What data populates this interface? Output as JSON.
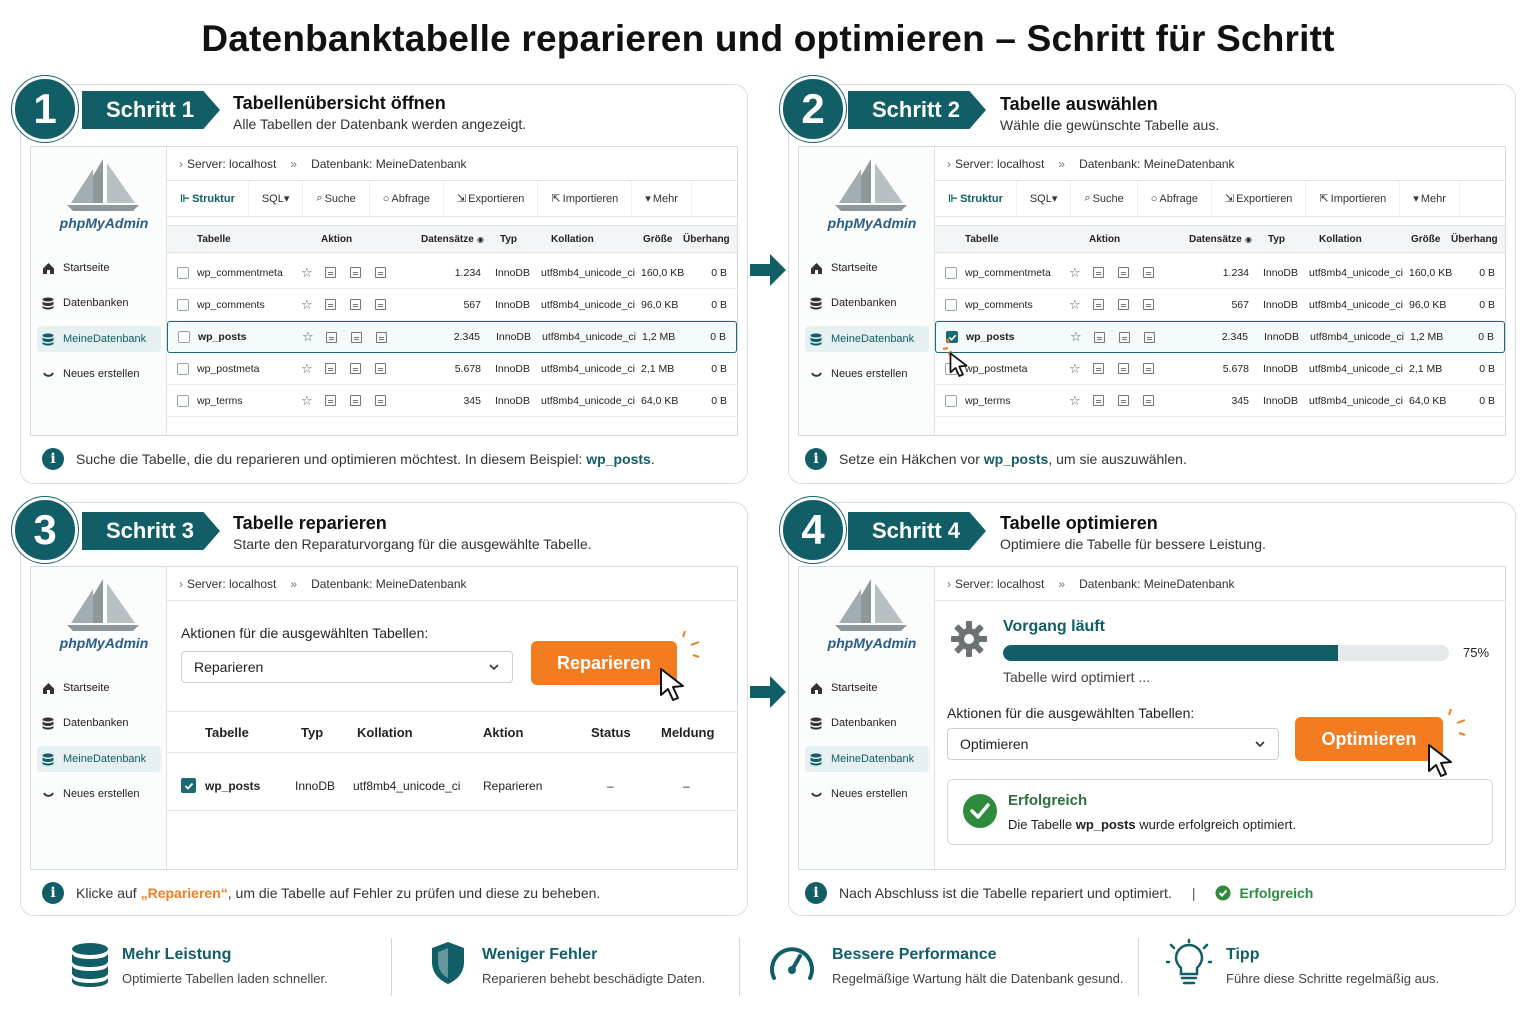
{
  "title": "Datenbanktabelle reparieren und optimieren – Schritt für Schritt",
  "pma": {
    "logo": "phpMyAdmin",
    "sidebar": [
      "Startseite",
      "Datenbanken",
      "MeineDatenbank",
      "Neues erstellen"
    ],
    "crumb_server": "Server: localhost",
    "crumb_sep": "»",
    "crumb_db": "Datenbank: MeineDatenbank",
    "tabs": [
      "Struktur",
      "SQL▾",
      "Suche",
      "Abfrage",
      "Exportieren",
      "Importieren",
      "Mehr"
    ],
    "columns": [
      "Tabelle",
      "Aktion",
      "Datensätze",
      "Typ",
      "Kollation",
      "Größe",
      "Überhang"
    ],
    "rows": [
      {
        "name": "wp_commentmeta",
        "records": "1.234",
        "type": "InnoDB",
        "collation": "utf8mb4_unicode_ci",
        "size": "160,0 KB",
        "overhead": "0 B"
      },
      {
        "name": "wp_comments",
        "records": "567",
        "type": "InnoDB",
        "collation": "utf8mb4_unicode_ci",
        "size": "96,0 KB",
        "overhead": "0 B"
      },
      {
        "name": "wp_posts",
        "records": "2.345",
        "type": "InnoDB",
        "collation": "utf8mb4_unicode_ci",
        "size": "1,2 MB",
        "overhead": "0 B"
      },
      {
        "name": "wp_postmeta",
        "records": "5.678",
        "type": "InnoDB",
        "collation": "utf8mb4_unicode_ci",
        "size": "2,1 MB",
        "overhead": "0 B"
      },
      {
        "name": "wp_terms",
        "records": "345",
        "type": "InnoDB",
        "collation": "utf8mb4_unicode_ci",
        "size": "64,0 KB",
        "overhead": "0 B"
      }
    ]
  },
  "step1": {
    "num": "1",
    "tag": "Schritt 1",
    "title": "Tabellenübersicht öffnen",
    "sub": "Alle Tabellen der Datenbank werden angezeigt.",
    "info_pre": "Suche die Tabelle, die du reparieren und optimieren möchtest. In diesem Beispiel: ",
    "info_bold": "wp_posts",
    "info_post": "."
  },
  "step2": {
    "num": "2",
    "tag": "Schritt 2",
    "title": "Tabelle auswählen",
    "sub": "Wähle die gewünschte Tabelle aus.",
    "info_pre": "Setze ein Häkchen vor ",
    "info_bold": "wp_posts",
    "info_post": ", um sie auszuwählen."
  },
  "step3": {
    "num": "3",
    "tag": "Schritt 3",
    "title": "Tabelle reparieren",
    "sub": "Starte den Reparaturvorgang für die ausgewählte Tabelle.",
    "actions_label": "Aktionen für die ausgewählten Tabellen:",
    "select_value": "Reparieren",
    "button": "Reparieren",
    "columns": [
      "Tabelle",
      "Typ",
      "Kollation",
      "Aktion",
      "Status",
      "Meldung"
    ],
    "row": {
      "name": "wp_posts",
      "type": "InnoDB",
      "collation": "utf8mb4_unicode_ci",
      "action": "Reparieren",
      "status": "–",
      "message": "–"
    },
    "info_pre": "Klicke auf ",
    "info_bold": "„Reparieren“",
    "info_post": ", um die Tabelle auf Fehler zu prüfen und diese zu beheben."
  },
  "step4": {
    "num": "4",
    "tag": "Schritt 4",
    "title": "Tabelle optimieren",
    "sub": "Optimiere die Tabelle für bessere Leistung.",
    "progress_title": "Vorgang läuft",
    "progress_value": 0.75,
    "progress_label": "75%",
    "progress_note": "Tabelle wird optimiert ...",
    "actions_label": "Aktionen für die ausgewählten Tabellen:",
    "select_value": "Optimieren",
    "button": "Optimieren",
    "success_title": "Erfolgreich",
    "success_pre": "Die Tabelle ",
    "success_bold": "wp_posts",
    "success_post": " wurde erfolgreich optimiert.",
    "info": "Nach Abschluss ist die Tabelle repariert und optimiert.",
    "info_sep": "|",
    "info_status": "Erfolgreich"
  },
  "footer": [
    {
      "icon": "database-icon",
      "title": "Mehr Leistung",
      "sub": "Optimierte Tabellen laden schneller."
    },
    {
      "icon": "shield-icon",
      "title": "Weniger Fehler",
      "sub": "Reparieren behebt beschädigte Daten."
    },
    {
      "icon": "speedometer-icon",
      "title": "Bessere Performance",
      "sub": "Regelmäßige Wartung hält die Datenbank gesund."
    },
    {
      "icon": "lightbulb-icon",
      "title": "Tipp",
      "sub": "Führe diese Schritte regelmäßig aus."
    }
  ],
  "colors": {
    "primary": "#115e67",
    "accent": "#f47c20",
    "success": "#2e8b3d"
  }
}
